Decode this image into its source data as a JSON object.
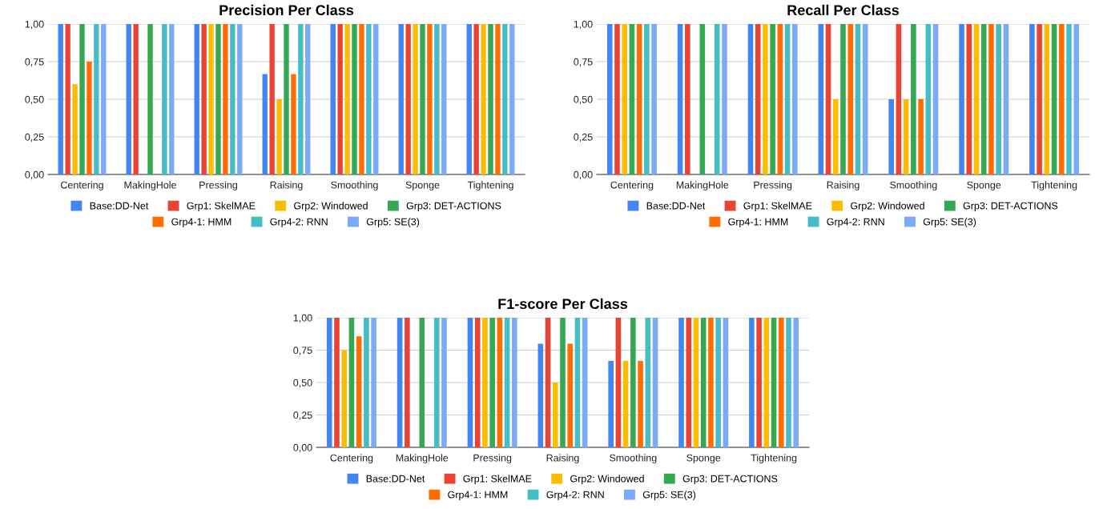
{
  "chart_data": [
    {
      "type": "bar",
      "title": "Precision Per Class",
      "categories": [
        "Centering",
        "MakingHole",
        "Pressing",
        "Raising",
        "Smoothing",
        "Sponge",
        "Tightening"
      ],
      "series": [
        {
          "name": "Base:DD-Net",
          "color": "#4285f4",
          "values": [
            1,
            1,
            1,
            0.667,
            1,
            1,
            1
          ]
        },
        {
          "name": "Grp1: SkelMAE",
          "color": "#ea4335",
          "values": [
            1,
            1,
            1,
            1,
            1,
            1,
            1
          ]
        },
        {
          "name": "Grp2: Windowed",
          "color": "#fbbc04",
          "values": [
            0.6,
            0,
            1,
            0.5,
            1,
            1,
            1
          ]
        },
        {
          "name": "Grp3: DET-ACTIONS",
          "color": "#34a853",
          "values": [
            1,
            1,
            1,
            1,
            1,
            1,
            1
          ]
        },
        {
          "name": "Grp4-1: HMM",
          "color": "#ff6d01",
          "values": [
            0.75,
            0,
            1,
            0.667,
            1,
            1,
            1
          ]
        },
        {
          "name": "Grp4-2: RNN",
          "color": "#46bdc6",
          "values": [
            1,
            1,
            1,
            1,
            1,
            1,
            1
          ]
        },
        {
          "name": "Grp5: SE(3)",
          "color": "#7baaf7",
          "values": [
            1,
            1,
            1,
            1,
            1,
            1,
            1
          ]
        }
      ],
      "ylim": [
        0,
        1
      ],
      "yticks": [
        {
          "value": 0,
          "label": "0,00"
        },
        {
          "value": 0.25,
          "label": "0,25"
        },
        {
          "value": 0.5,
          "label": "0,50"
        },
        {
          "value": 0.75,
          "label": "0,75"
        },
        {
          "value": 1,
          "label": "1,00"
        }
      ],
      "grid": "y",
      "legend": "bottom"
    },
    {
      "type": "bar",
      "title": "Recall Per Class",
      "categories": [
        "Centering",
        "MakingHole",
        "Pressing",
        "Raising",
        "Smoothing",
        "Sponge",
        "Tightening"
      ],
      "series": [
        {
          "name": "Base:DD-Net",
          "color": "#4285f4",
          "values": [
            1,
            1,
            1,
            1,
            0.5,
            1,
            1
          ]
        },
        {
          "name": "Grp1: SkelMAE",
          "color": "#ea4335",
          "values": [
            1,
            1,
            1,
            1,
            1,
            1,
            1
          ]
        },
        {
          "name": "Grp2: Windowed",
          "color": "#fbbc04",
          "values": [
            1,
            0,
            1,
            0.5,
            0.5,
            1,
            1
          ]
        },
        {
          "name": "Grp3: DET-ACTIONS",
          "color": "#34a853",
          "values": [
            1,
            1,
            1,
            1,
            1,
            1,
            1
          ]
        },
        {
          "name": "Grp4-1: HMM",
          "color": "#ff6d01",
          "values": [
            1,
            0,
            1,
            1,
            0.5,
            1,
            1
          ]
        },
        {
          "name": "Grp4-2: RNN",
          "color": "#46bdc6",
          "values": [
            1,
            1,
            1,
            1,
            1,
            1,
            1
          ]
        },
        {
          "name": "Grp5: SE(3)",
          "color": "#7baaf7",
          "values": [
            1,
            1,
            1,
            1,
            1,
            1,
            1
          ]
        }
      ],
      "ylim": [
        0,
        1
      ],
      "yticks": [
        {
          "value": 0,
          "label": "0,00"
        },
        {
          "value": 0.25,
          "label": "0,25"
        },
        {
          "value": 0.5,
          "label": "0,50"
        },
        {
          "value": 0.75,
          "label": "0,75"
        },
        {
          "value": 1,
          "label": "1,00"
        }
      ],
      "grid": "y",
      "legend": "bottom"
    },
    {
      "type": "bar",
      "title": "F1-score Per Class",
      "categories": [
        "Centering",
        "MakingHole",
        "Pressing",
        "Raising",
        "Smoothing",
        "Sponge",
        "Tightening"
      ],
      "series": [
        {
          "name": "Base:DD-Net",
          "color": "#4285f4",
          "values": [
            1,
            1,
            1,
            0.8,
            0.667,
            1,
            1
          ]
        },
        {
          "name": "Grp1: SkelMAE",
          "color": "#ea4335",
          "values": [
            1,
            1,
            1,
            1,
            1,
            1,
            1
          ]
        },
        {
          "name": "Grp2: Windowed",
          "color": "#fbbc04",
          "values": [
            0.75,
            0,
            1,
            0.5,
            0.667,
            1,
            1
          ]
        },
        {
          "name": "Grp3: DET-ACTIONS",
          "color": "#34a853",
          "values": [
            1,
            1,
            1,
            1,
            1,
            1,
            1
          ]
        },
        {
          "name": "Grp4-1: HMM",
          "color": "#ff6d01",
          "values": [
            0.857,
            0,
            1,
            0.8,
            0.667,
            1,
            1
          ]
        },
        {
          "name": "Grp4-2: RNN",
          "color": "#46bdc6",
          "values": [
            1,
            1,
            1,
            1,
            1,
            1,
            1
          ]
        },
        {
          "name": "Grp5: SE(3)",
          "color": "#7baaf7",
          "values": [
            1,
            1,
            1,
            1,
            1,
            1,
            1
          ]
        }
      ],
      "ylim": [
        0,
        1
      ],
      "yticks": [
        {
          "value": 0,
          "label": "0,00"
        },
        {
          "value": 0.25,
          "label": "0,25"
        },
        {
          "value": 0.5,
          "label": "0,50"
        },
        {
          "value": 0.75,
          "label": "0,75"
        },
        {
          "value": 1,
          "label": "1,00"
        }
      ],
      "grid": "y",
      "legend": "bottom"
    }
  ]
}
